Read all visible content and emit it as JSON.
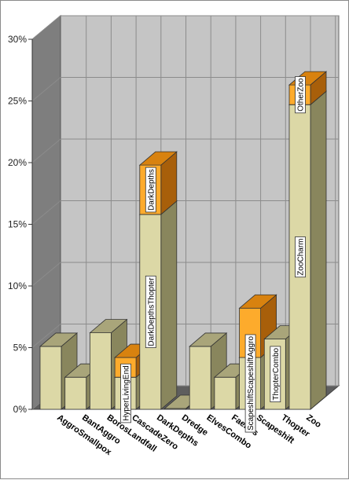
{
  "chart_data": {
    "type": "bar",
    "stacked": true,
    "three_d": true,
    "legend": "none",
    "grid": true,
    "ylim": [
      0,
      30
    ],
    "yticks": [
      "0%",
      "5%",
      "10%",
      "15%",
      "20%",
      "25%",
      "30%"
    ],
    "categories": [
      "AggroSmallpox",
      "BantAggro",
      "BorosLandfall",
      "CascadeZero",
      "DarkDepths",
      "Dredge",
      "ElvesCombo",
      "Faeries",
      "Scapeshift",
      "Thopter",
      "Zoo"
    ],
    "series": [
      {
        "values": [
          5.1,
          2.6,
          6.2,
          2.6,
          15.8,
          0,
          5.1,
          2.6,
          4.2,
          5.7,
          24.7
        ]
      },
      {
        "values": [
          0,
          0,
          0,
          1.6,
          4.0,
          0,
          0,
          0,
          4.0,
          0,
          1.6
        ]
      }
    ],
    "colors": {
      "base_front": "#dcd8a6",
      "base_top": "#a9a57a",
      "base_side": "#89865d",
      "top_front": "#fdab2c",
      "top_top": "#d8820f",
      "top_side": "#a85f0a",
      "wall_back": "#c5c5c5",
      "wall_left": "#7e7e7e",
      "floor": "#5e5e5e",
      "grid": "#8c8c8c"
    },
    "segment_labels": [
      {
        "category": "CascadeZero",
        "segment": 0,
        "text": "HyperLivingEnd"
      },
      {
        "category": "DarkDepths",
        "segment": 0,
        "text": "DarkDepthsThopter"
      },
      {
        "category": "DarkDepths",
        "segment": 1,
        "text": "DarkDepths"
      },
      {
        "category": "Scapeshift",
        "segment": 0,
        "text": "ScapeshiftScapeshiftAggro"
      },
      {
        "category": "Thopter",
        "segment": 0,
        "text": "ThopterCombo"
      },
      {
        "category": "Zoo",
        "segment": 0,
        "text": "ZooCharm"
      },
      {
        "category": "Zoo",
        "segment": 1,
        "text": "OtherZoo"
      }
    ]
  }
}
